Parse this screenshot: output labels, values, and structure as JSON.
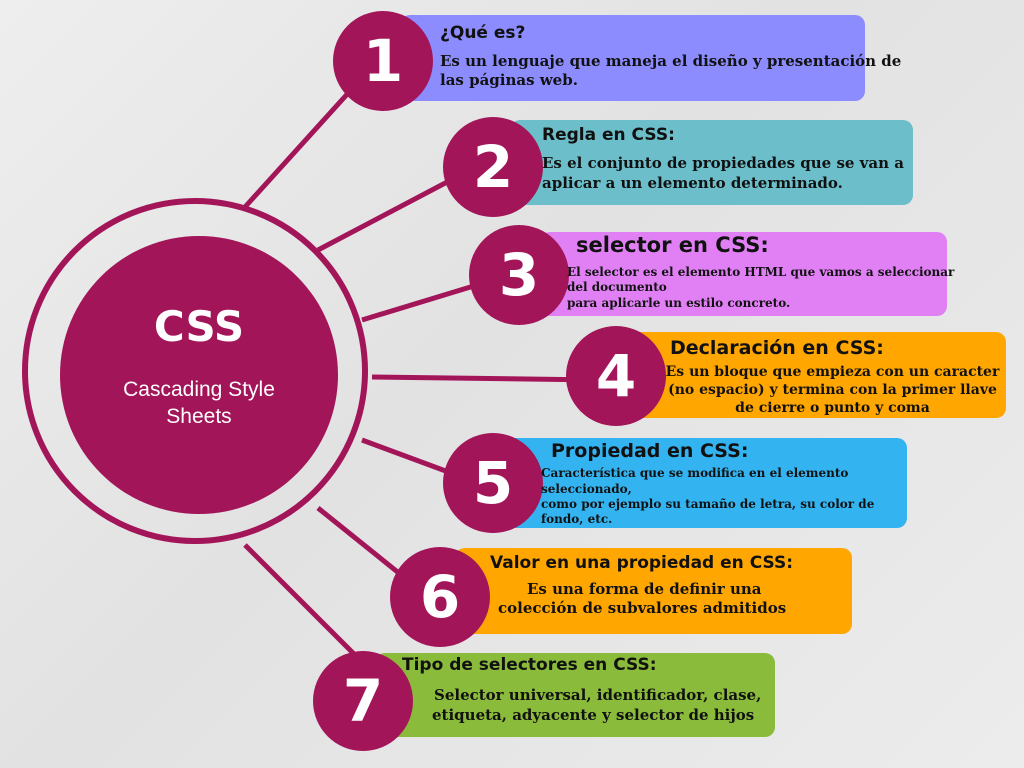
{
  "colors": {
    "accent": "#a31559",
    "box1": "#8c8cff",
    "box2": "#6cbfca",
    "box3": "#e180f5",
    "box4": "#ffa600",
    "box5": "#34b3f1",
    "box6": "#ffa600",
    "box7": "#8bbb3a"
  },
  "center": {
    "title": "CSS",
    "subtitle": "Cascading Style Sheets"
  },
  "items": [
    {
      "number": "1",
      "title": "¿Qué es?",
      "lines": [
        " Es un lenguaje que maneja el diseño y presentación de",
        "las páginas web."
      ]
    },
    {
      "number": "2",
      "title": "Regla en CSS:",
      "lines": [
        "Es el conjunto de propiedades que se van a",
        "aplicar a un elemento determinado."
      ]
    },
    {
      "number": "3",
      "title": "selector en CSS:",
      "lines": [
        "El selector es el elemento HTML que vamos a seleccionar",
        "del documento",
        "para aplicarle un estilo concreto."
      ]
    },
    {
      "number": "4",
      "title": "Declaración en CSS:",
      "lines": [
        "Es un bloque que empieza con un caracter",
        "(no espacio) y termina con la primer llave",
        "de cierre o punto y coma"
      ]
    },
    {
      "number": "5",
      "title": "Propiedad en CSS:",
      "lines": [
        "Característica que se modifica en el elemento",
        "seleccionado,",
        "como por ejemplo su tamaño de letra, su color de",
        "fondo, etc."
      ]
    },
    {
      "number": "6",
      "title": "Valor en una propiedad en CSS:",
      "lines": [
        "Es una forma de definir una",
        "colección de subvalores admitidos"
      ]
    },
    {
      "number": "7",
      "title": "Tipo de selectores en CSS:",
      "lines": [
        "Selector universal, identificador, clase,",
        "etiqueta, adyacente y selector de hijos"
      ]
    }
  ]
}
